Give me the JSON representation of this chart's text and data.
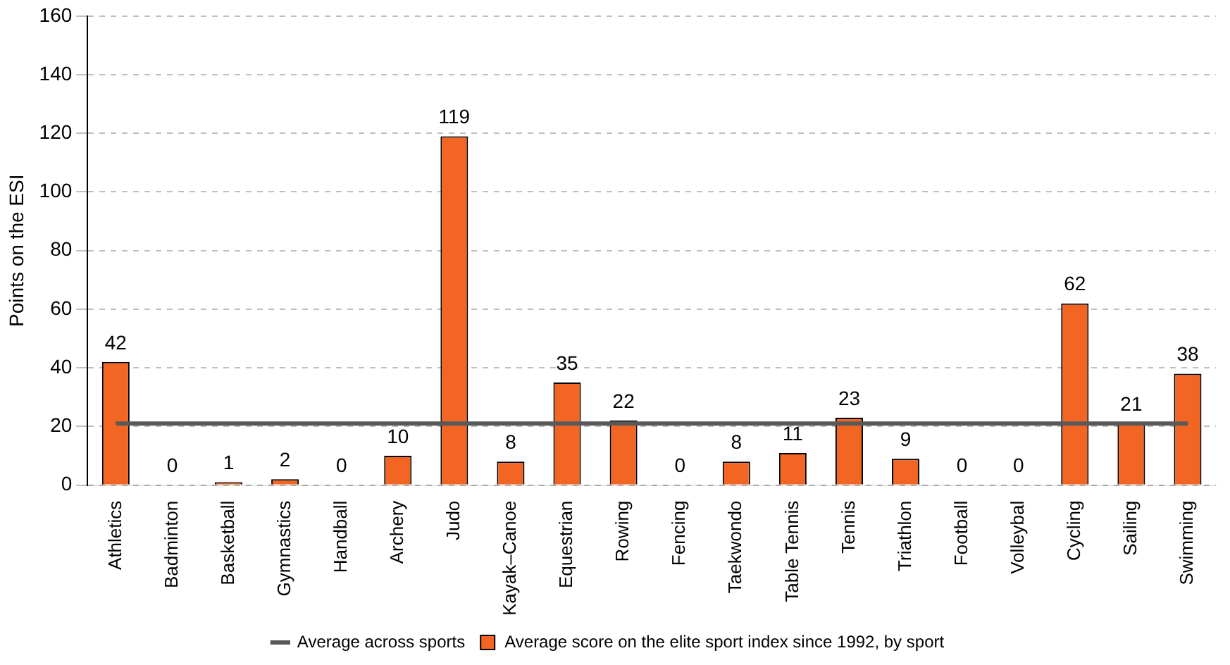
{
  "chart_data": {
    "type": "bar",
    "ylabel": "Points on the ESI",
    "categories": [
      "Athletics",
      "Badminton",
      "Basketball",
      "Gymnastics",
      "Handball",
      "Archery",
      "Judo",
      "Kayak–Canoe",
      "Equestrian",
      "Rowing",
      "Fencing",
      "Taekwondo",
      "Table Tennis",
      "Tennis",
      "Triathlon",
      "Football",
      "Volleybal",
      "Cycling",
      "Sailing",
      "Swimming"
    ],
    "series": [
      {
        "name": "Average score on the elite sport index since 1992, by sport",
        "color": "#f26522",
        "values": [
          42,
          0,
          1,
          2,
          0,
          10,
          119,
          8,
          35,
          22,
          0,
          8,
          11,
          23,
          9,
          0,
          0,
          62,
          21,
          38
        ],
        "value_labels": [
          "42",
          "0",
          "1",
          "2",
          "0",
          "10",
          "119",
          "8",
          "35",
          "22",
          "0",
          "8",
          "11",
          "23",
          "9",
          "0",
          "0",
          "62",
          "21",
          "38"
        ]
      },
      {
        "name": "Average across sports",
        "type": "line",
        "color": "#595959",
        "values": [
          21,
          21,
          21,
          21,
          21,
          21,
          21,
          21,
          21,
          21,
          21,
          21,
          21,
          21,
          21,
          21,
          21,
          21,
          21,
          21
        ]
      }
    ],
    "ylim": [
      0,
      160
    ],
    "yticks": [
      0,
      20,
      40,
      60,
      80,
      100,
      120,
      140,
      160
    ],
    "grid": "y",
    "legend": "bottom",
    "marker": "none"
  }
}
